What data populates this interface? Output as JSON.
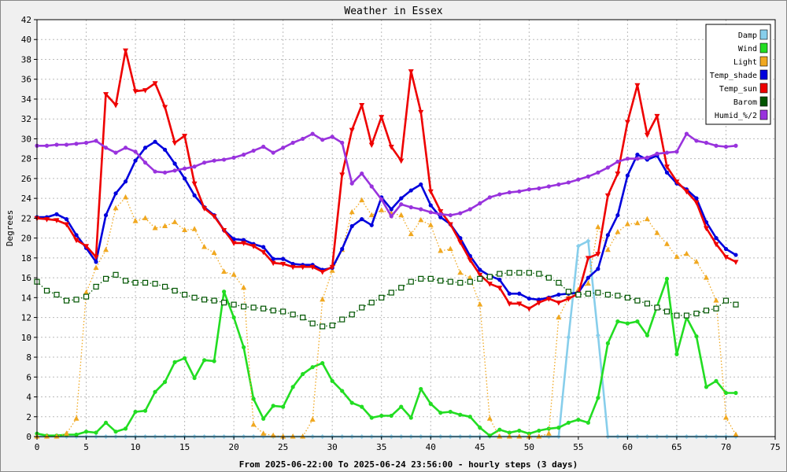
{
  "chart_data": {
    "type": "line",
    "title": "Weather in Essex",
    "ylabel": "Degrees",
    "xlabel": "From 2025-06-22:00 To 2025-06-24 23:56:00 - hourly steps (3 days)",
    "xlim": [
      0,
      75
    ],
    "ylim": [
      0,
      42
    ],
    "x_ticks": [
      0,
      5,
      10,
      15,
      20,
      25,
      30,
      35,
      40,
      45,
      50,
      55,
      60,
      65,
      70,
      75
    ],
    "y_ticks": [
      0,
      2,
      4,
      6,
      8,
      10,
      12,
      14,
      16,
      18,
      20,
      22,
      24,
      26,
      28,
      30,
      32,
      34,
      36,
      38,
      40,
      42
    ],
    "grid": true,
    "legend_position": "top-right",
    "series": [
      {
        "name": "Damp",
        "color": "#87ceeb",
        "marker": "diamond",
        "style": "solid",
        "values": [
          0,
          0,
          0,
          0,
          0,
          0,
          0,
          0,
          0,
          0,
          0,
          0,
          0,
          0,
          0,
          0,
          0,
          0,
          0,
          0,
          0,
          0,
          0,
          0,
          0,
          0,
          0,
          0,
          0,
          0,
          0,
          0,
          0,
          0,
          0,
          0,
          0,
          0,
          0,
          0,
          0,
          0,
          0,
          0,
          0,
          0,
          0,
          0,
          0,
          0,
          0,
          0,
          0,
          0,
          10,
          19.2,
          19.7,
          10.2,
          0,
          0,
          0,
          0,
          0,
          0,
          0,
          0,
          0,
          0,
          0,
          0,
          0,
          0
        ]
      },
      {
        "name": "Wind",
        "color": "#22dd22",
        "marker": "dot",
        "style": "solid",
        "values": [
          0.3,
          0.1,
          0.1,
          0.2,
          0.2,
          0.5,
          0.4,
          1.4,
          0.5,
          0.8,
          2.5,
          2.6,
          4.5,
          5.5,
          7.5,
          7.9,
          5.9,
          7.7,
          7.6,
          14.6,
          12,
          9,
          3.8,
          1.8,
          3.1,
          3,
          5,
          6.3,
          7,
          7.4,
          5.6,
          4.6,
          3.4,
          3,
          1.9,
          2.1,
          2.1,
          3,
          1.9,
          4.8,
          3.3,
          2.4,
          2.5,
          2.2,
          2,
          0.9,
          0.1,
          0.7,
          0.4,
          0.6,
          0.3,
          0.6,
          0.8,
          0.9,
          1.4,
          1.7,
          1.4,
          3.9,
          9.4,
          11.6,
          11.4,
          11.6,
          10.2,
          13.1,
          15.9,
          8.3,
          12,
          10.1,
          5,
          5.6,
          4.4,
          4.4
        ]
      },
      {
        "name": "Light",
        "color": "#f0a820",
        "marker": "triangle",
        "style": "dotted",
        "values": [
          0,
          0,
          0,
          0.3,
          1.8,
          14.5,
          17,
          18.8,
          23,
          24.1,
          21.7,
          22,
          21,
          21.2,
          21.6,
          20.8,
          20.9,
          19.1,
          18.5,
          16.6,
          16.3,
          15,
          1.2,
          0.3,
          0.1,
          0,
          0,
          0,
          1.7,
          13.8,
          16.7,
          18.8,
          22.6,
          23.8,
          22.3,
          22.8,
          22.5,
          22.3,
          20.4,
          21.8,
          21.3,
          18.7,
          18.9,
          16.5,
          16,
          13.3,
          1.8,
          0,
          0,
          0,
          0,
          0,
          0.3,
          12,
          14,
          14.8,
          15.4,
          21.1,
          18.8,
          20.6,
          21.4,
          21.5,
          21.9,
          20.5,
          19.4,
          18.1,
          18.4,
          17.6,
          16,
          13.7,
          1.9,
          0.2
        ]
      },
      {
        "name": "Temp_shade",
        "color": "#0000dd",
        "marker": "dot",
        "style": "solid",
        "values": [
          22.1,
          22.1,
          22.4,
          21.9,
          20.3,
          19,
          17.6,
          22.3,
          24.5,
          25.7,
          27.8,
          29.1,
          29.7,
          28.9,
          27.5,
          26,
          24.3,
          23.1,
          22.3,
          20.8,
          19.9,
          19.8,
          19.4,
          19.1,
          17.9,
          17.9,
          17.4,
          17.3,
          17.3,
          16.8,
          17,
          18.9,
          21.2,
          21.9,
          21.3,
          24.1,
          22.9,
          24,
          24.8,
          25.4,
          23.3,
          22.1,
          21.4,
          20,
          18.2,
          16.8,
          16.2,
          15.8,
          14.4,
          14.4,
          13.9,
          13.8,
          14,
          14.3,
          14.4,
          14.5,
          16,
          16.9,
          20.3,
          22.3,
          26.3,
          28.4,
          27.9,
          28.3,
          26.6,
          25.5,
          24.9,
          24,
          21.6,
          20,
          18.9,
          18.3
        ]
      },
      {
        "name": "Temp_sun",
        "color": "#ee0000",
        "marker": "triangle-down",
        "style": "solid",
        "values": [
          22,
          21.9,
          21.8,
          21.4,
          19.8,
          19.2,
          18.1,
          34.5,
          33.4,
          38.9,
          34.8,
          34.9,
          35.6,
          33.2,
          29.6,
          30.3,
          25.5,
          23,
          22.2,
          20.8,
          19.5,
          19.5,
          19.2,
          18.6,
          17.5,
          17.4,
          17.1,
          17.1,
          17.1,
          16.6,
          17.1,
          26.4,
          30.9,
          33.4,
          29.4,
          32.2,
          29.2,
          27.8,
          36.8,
          32.7,
          24.7,
          22.7,
          21.4,
          19.6,
          17.8,
          16.3,
          15.4,
          15,
          13.4,
          13.4,
          12.9,
          13.5,
          13.9,
          13.5,
          13.9,
          14.4,
          18,
          18.4,
          24.3,
          26.5,
          31.7,
          35.4,
          30.4,
          32.3,
          27.2,
          25.7,
          24.7,
          23.6,
          21,
          19.4,
          18.1,
          17.6
        ]
      },
      {
        "name": "Barom",
        "color": "#005500",
        "marker": "square",
        "style": "dotted",
        "values": [
          15.6,
          14.7,
          14.3,
          13.7,
          13.8,
          14.1,
          15.1,
          15.9,
          16.3,
          15.7,
          15.5,
          15.5,
          15.4,
          15.1,
          14.7,
          14.3,
          14,
          13.8,
          13.7,
          13.5,
          13.3,
          13.1,
          13,
          12.9,
          12.7,
          12.6,
          12.3,
          12,
          11.4,
          11.1,
          11.2,
          11.8,
          12.3,
          13,
          13.5,
          14,
          14.5,
          15,
          15.6,
          15.9,
          15.9,
          15.7,
          15.6,
          15.5,
          15.6,
          15.9,
          16.1,
          16.4,
          16.5,
          16.5,
          16.5,
          16.4,
          16,
          15.5,
          14.6,
          14.3,
          14.4,
          14.5,
          14.3,
          14.2,
          14,
          13.7,
          13.4,
          13,
          12.6,
          12.2,
          12.2,
          12.4,
          12.7,
          12.9,
          13.7,
          13.3
        ]
      },
      {
        "name": "Humid_%/2",
        "color": "#9933dd",
        "marker": "dot",
        "style": "solid",
        "values": [
          29.3,
          29.3,
          29.4,
          29.4,
          29.5,
          29.6,
          29.8,
          29.1,
          28.6,
          29.1,
          28.7,
          27.6,
          26.7,
          26.6,
          26.8,
          27,
          27.2,
          27.6,
          27.8,
          27.9,
          28.1,
          28.4,
          28.8,
          29.2,
          28.6,
          29.1,
          29.6,
          30,
          30.5,
          29.9,
          30.2,
          29.6,
          25.5,
          26.5,
          25.2,
          23.9,
          22.2,
          23.4,
          23.1,
          22.9,
          22.6,
          22.4,
          22.3,
          22.5,
          22.9,
          23.5,
          24.1,
          24.4,
          24.6,
          24.7,
          24.9,
          25,
          25.2,
          25.4,
          25.6,
          25.9,
          26.2,
          26.6,
          27.1,
          27.7,
          28,
          28,
          28.1,
          28.5,
          28.6,
          28.7,
          30.5,
          29.8,
          29.6,
          29.3,
          29.2,
          29.3
        ]
      }
    ]
  }
}
